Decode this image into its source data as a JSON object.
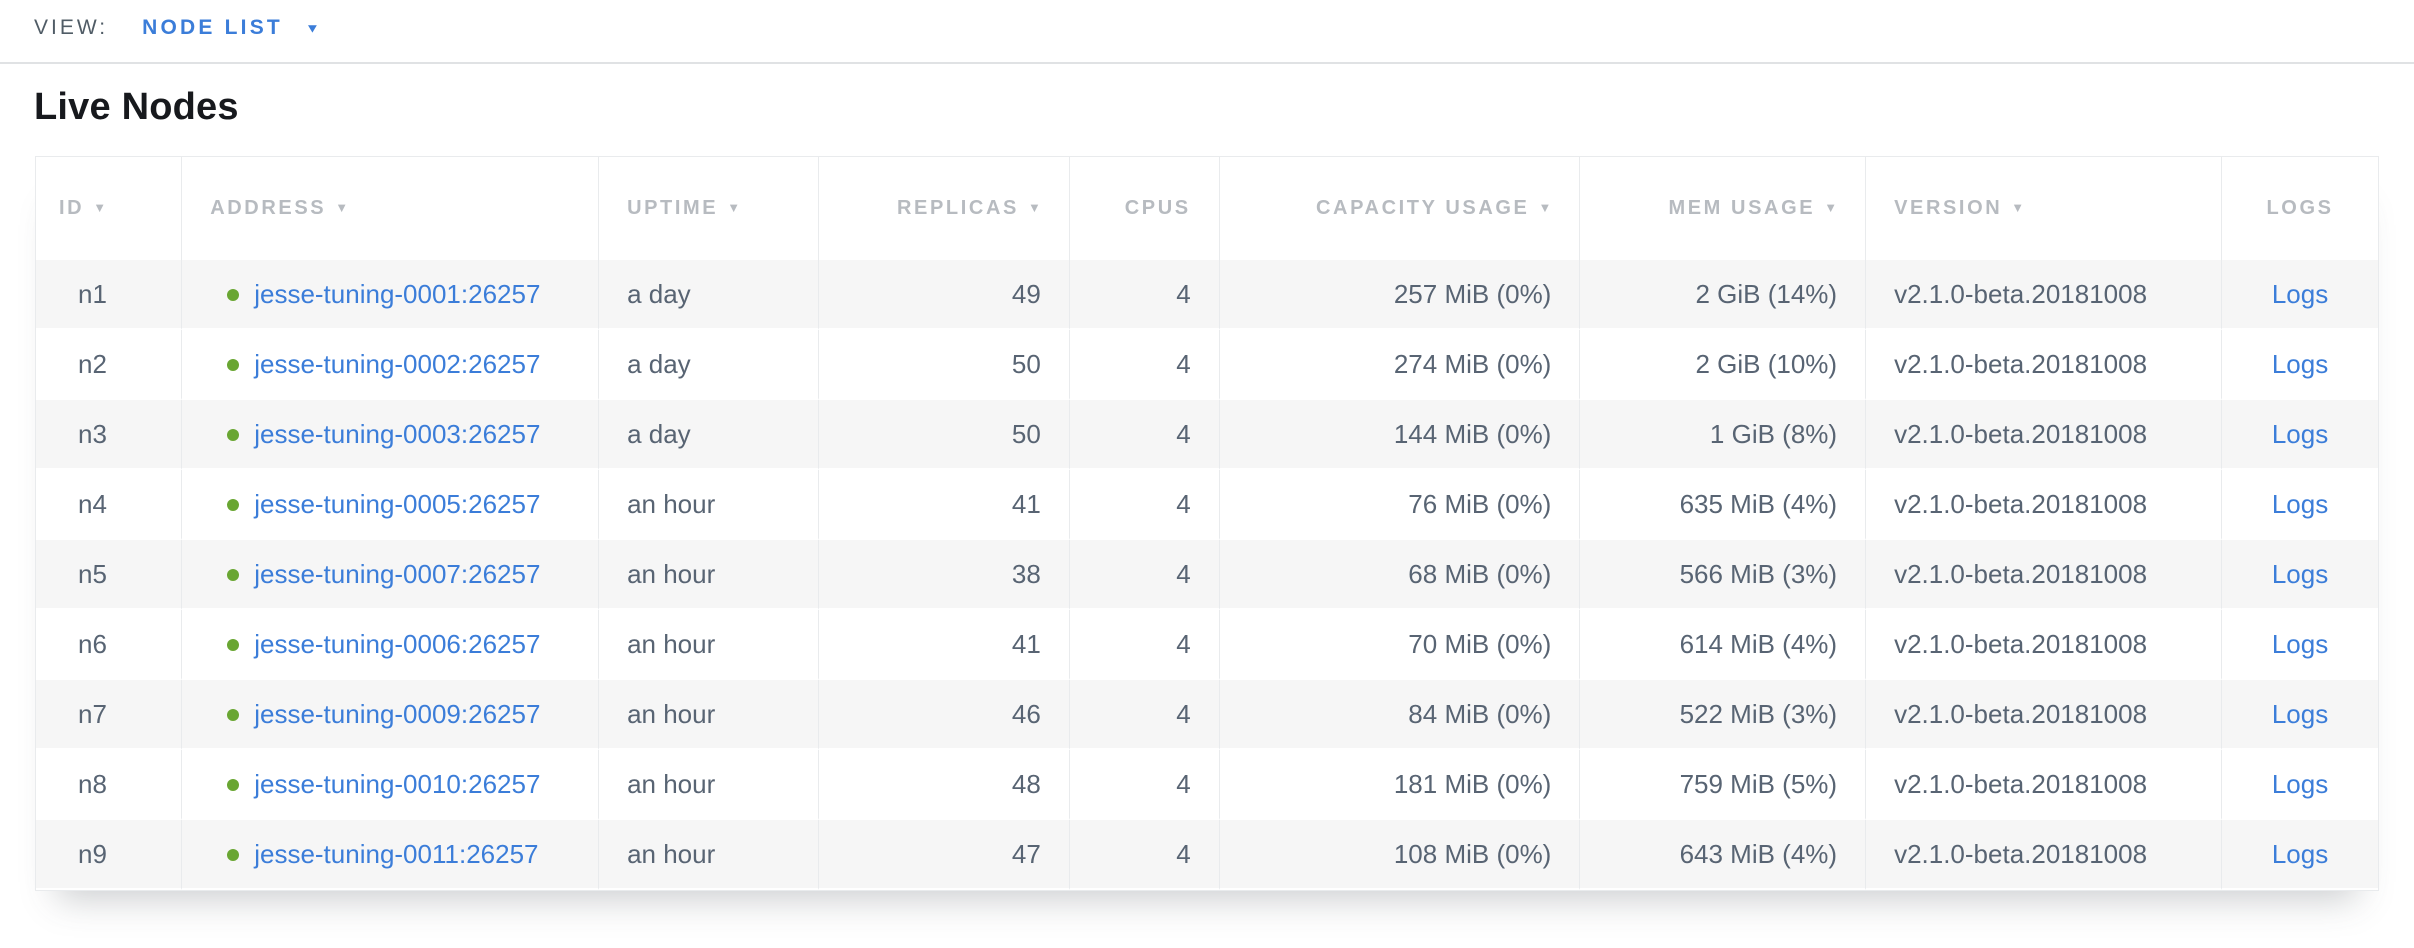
{
  "topbar": {
    "view_label": "VIEW:",
    "view_selector": {
      "value": "NODE LIST"
    }
  },
  "page_title": "Live Nodes",
  "icons": {
    "sort_desc": "▼",
    "dropdown_caret": "▼"
  },
  "colors": {
    "link_blue": "#3b7dd9",
    "live_dot_green": "#69a632",
    "header_text_gray": "#b7bbc0",
    "cell_text": "#586473",
    "row_stripe": "#f6f6f6",
    "title_text": "#17191d"
  },
  "table": {
    "columns": [
      {
        "key": "id",
        "label": "ID",
        "sortable": true,
        "align": "left"
      },
      {
        "key": "address",
        "label": "ADDRESS",
        "sortable": true,
        "align": "left"
      },
      {
        "key": "uptime",
        "label": "UPTIME",
        "sortable": true,
        "align": "left"
      },
      {
        "key": "replicas",
        "label": "REPLICAS",
        "sortable": true,
        "align": "right"
      },
      {
        "key": "cpus",
        "label": "CPUS",
        "sortable": false,
        "align": "right"
      },
      {
        "key": "capacity_usage",
        "label": "CAPACITY USAGE",
        "sortable": true,
        "align": "right"
      },
      {
        "key": "mem_usage",
        "label": "MEM USAGE",
        "sortable": true,
        "align": "right"
      },
      {
        "key": "version",
        "label": "VERSION",
        "sortable": true,
        "align": "left"
      },
      {
        "key": "logs",
        "label": "LOGS",
        "sortable": false,
        "align": "center"
      }
    ],
    "rows": [
      {
        "id": "n1",
        "address": "jesse-tuning-0001:26257",
        "uptime": "a day",
        "replicas": "49",
        "cpus": "4",
        "capacity_usage": "257 MiB (0%)",
        "mem_usage": "2 GiB (14%)",
        "version": "v2.1.0-beta.20181008",
        "logs_label": "Logs"
      },
      {
        "id": "n2",
        "address": "jesse-tuning-0002:26257",
        "uptime": "a day",
        "replicas": "50",
        "cpus": "4",
        "capacity_usage": "274 MiB (0%)",
        "mem_usage": "2 GiB (10%)",
        "version": "v2.1.0-beta.20181008",
        "logs_label": "Logs"
      },
      {
        "id": "n3",
        "address": "jesse-tuning-0003:26257",
        "uptime": "a day",
        "replicas": "50",
        "cpus": "4",
        "capacity_usage": "144 MiB (0%)",
        "mem_usage": "1 GiB (8%)",
        "version": "v2.1.0-beta.20181008",
        "logs_label": "Logs"
      },
      {
        "id": "n4",
        "address": "jesse-tuning-0005:26257",
        "uptime": "an hour",
        "replicas": "41",
        "cpus": "4",
        "capacity_usage": "76 MiB (0%)",
        "mem_usage": "635 MiB (4%)",
        "version": "v2.1.0-beta.20181008",
        "logs_label": "Logs"
      },
      {
        "id": "n5",
        "address": "jesse-tuning-0007:26257",
        "uptime": "an hour",
        "replicas": "38",
        "cpus": "4",
        "capacity_usage": "68 MiB (0%)",
        "mem_usage": "566 MiB (3%)",
        "version": "v2.1.0-beta.20181008",
        "logs_label": "Logs"
      },
      {
        "id": "n6",
        "address": "jesse-tuning-0006:26257",
        "uptime": "an hour",
        "replicas": "41",
        "cpus": "4",
        "capacity_usage": "70 MiB (0%)",
        "mem_usage": "614 MiB (4%)",
        "version": "v2.1.0-beta.20181008",
        "logs_label": "Logs"
      },
      {
        "id": "n7",
        "address": "jesse-tuning-0009:26257",
        "uptime": "an hour",
        "replicas": "46",
        "cpus": "4",
        "capacity_usage": "84 MiB (0%)",
        "mem_usage": "522 MiB (3%)",
        "version": "v2.1.0-beta.20181008",
        "logs_label": "Logs"
      },
      {
        "id": "n8",
        "address": "jesse-tuning-0010:26257",
        "uptime": "an hour",
        "replicas": "48",
        "cpus": "4",
        "capacity_usage": "181 MiB (0%)",
        "mem_usage": "759 MiB (5%)",
        "version": "v2.1.0-beta.20181008",
        "logs_label": "Logs"
      },
      {
        "id": "n9",
        "address": "jesse-tuning-0011:26257",
        "uptime": "an hour",
        "replicas": "47",
        "cpus": "4",
        "capacity_usage": "108 MiB (0%)",
        "mem_usage": "643 MiB (4%)",
        "version": "v2.1.0-beta.20181008",
        "logs_label": "Logs"
      }
    ]
  }
}
